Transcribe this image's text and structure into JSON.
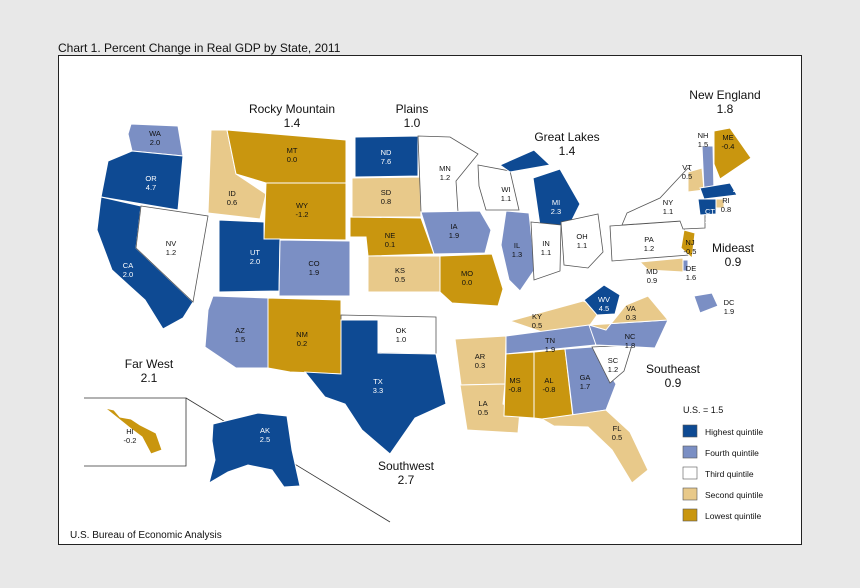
{
  "title": "Chart 1. Percent Change in Real GDP by State, 2011",
  "source": "U.S. Bureau of Economic Analysis",
  "colors": {
    "highest": "#0e4a93",
    "fourth": "#7b8fc4",
    "third": "#ffffff",
    "second": "#e8c98a",
    "lowest": "#c9960f"
  },
  "regions": [
    {
      "name": "Rocky Mountain",
      "value": "1.4"
    },
    {
      "name": "Plains",
      "value": "1.0"
    },
    {
      "name": "Great Lakes",
      "value": "1.4"
    },
    {
      "name": "New England",
      "value": "1.8"
    },
    {
      "name": "Mideast",
      "value": "0.9"
    },
    {
      "name": "Southeast",
      "value": "0.9"
    },
    {
      "name": "Southwest",
      "value": "2.7"
    },
    {
      "name": "Far West",
      "value": "2.1"
    }
  ],
  "legend": {
    "title": "U.S. = 1.5",
    "items": [
      {
        "label": "Highest quintile",
        "key": "highest"
      },
      {
        "label": "Fourth quintile",
        "key": "fourth"
      },
      {
        "label": "Third quintile",
        "key": "third"
      },
      {
        "label": "Second quintile",
        "key": "second"
      },
      {
        "label": "Lowest quintile",
        "key": "lowest"
      }
    ]
  },
  "states": [
    {
      "abbr": "WA",
      "value": "2.0",
      "q": "fourth"
    },
    {
      "abbr": "OR",
      "value": "4.7",
      "q": "highest"
    },
    {
      "abbr": "CA",
      "value": "2.0",
      "q": "highest"
    },
    {
      "abbr": "NV",
      "value": "1.2",
      "q": "third"
    },
    {
      "abbr": "ID",
      "value": "0.6",
      "q": "second"
    },
    {
      "abbr": "MT",
      "value": "0.0",
      "q": "lowest"
    },
    {
      "abbr": "WY",
      "value": "-1.2",
      "q": "lowest"
    },
    {
      "abbr": "UT",
      "value": "2.0",
      "q": "highest"
    },
    {
      "abbr": "CO",
      "value": "1.9",
      "q": "fourth"
    },
    {
      "abbr": "AZ",
      "value": "1.5",
      "q": "fourth"
    },
    {
      "abbr": "NM",
      "value": "0.2",
      "q": "lowest"
    },
    {
      "abbr": "ND",
      "value": "7.6",
      "q": "highest"
    },
    {
      "abbr": "SD",
      "value": "0.8",
      "q": "second"
    },
    {
      "abbr": "NE",
      "value": "0.1",
      "q": "lowest"
    },
    {
      "abbr": "KS",
      "value": "0.5",
      "q": "second"
    },
    {
      "abbr": "OK",
      "value": "1.0",
      "q": "third"
    },
    {
      "abbr": "TX",
      "value": "3.3",
      "q": "highest"
    },
    {
      "abbr": "MN",
      "value": "1.2",
      "q": "third"
    },
    {
      "abbr": "IA",
      "value": "1.9",
      "q": "fourth"
    },
    {
      "abbr": "MO",
      "value": "0.0",
      "q": "lowest"
    },
    {
      "abbr": "AR",
      "value": "0.3",
      "q": "second"
    },
    {
      "abbr": "LA",
      "value": "0.5",
      "q": "second"
    },
    {
      "abbr": "WI",
      "value": "1.1",
      "q": "third"
    },
    {
      "abbr": "IL",
      "value": "1.3",
      "q": "fourth"
    },
    {
      "abbr": "MI",
      "value": "2.3",
      "q": "highest"
    },
    {
      "abbr": "IN",
      "value": "1.1",
      "q": "third"
    },
    {
      "abbr": "OH",
      "value": "1.1",
      "q": "third"
    },
    {
      "abbr": "KY",
      "value": "0.5",
      "q": "second"
    },
    {
      "abbr": "TN",
      "value": "1.9",
      "q": "fourth"
    },
    {
      "abbr": "MS",
      "value": "-0.8",
      "q": "lowest"
    },
    {
      "abbr": "AL",
      "value": "-0.8",
      "q": "lowest"
    },
    {
      "abbr": "GA",
      "value": "1.7",
      "q": "fourth"
    },
    {
      "abbr": "FL",
      "value": "0.5",
      "q": "second"
    },
    {
      "abbr": "SC",
      "value": "1.2",
      "q": "third"
    },
    {
      "abbr": "NC",
      "value": "1.8",
      "q": "fourth"
    },
    {
      "abbr": "VA",
      "value": "0.3",
      "q": "second"
    },
    {
      "abbr": "WV",
      "value": "4.5",
      "q": "highest"
    },
    {
      "abbr": "PA",
      "value": "1.2",
      "q": "third"
    },
    {
      "abbr": "NY",
      "value": "1.1",
      "q": "third"
    },
    {
      "abbr": "NJ",
      "value": "-0.5",
      "q": "lowest"
    },
    {
      "abbr": "DE",
      "value": "1.6",
      "q": "fourth"
    },
    {
      "abbr": "MD",
      "value": "0.9",
      "q": "second"
    },
    {
      "abbr": "DC",
      "value": "1.9",
      "q": "fourth"
    },
    {
      "abbr": "VT",
      "value": "0.5",
      "q": "second"
    },
    {
      "abbr": "NH",
      "value": "1.5",
      "q": "fourth"
    },
    {
      "abbr": "ME",
      "value": "-0.4",
      "q": "lowest"
    },
    {
      "abbr": "MA",
      "value": "2.2",
      "q": "highest"
    },
    {
      "abbr": "RI",
      "value": "0.8",
      "q": "second"
    },
    {
      "abbr": "CT",
      "value": "2.0",
      "q": "highest"
    },
    {
      "abbr": "AK",
      "value": "2.5",
      "q": "highest"
    },
    {
      "abbr": "HI",
      "value": "-0.2",
      "q": "lowest"
    }
  ]
}
